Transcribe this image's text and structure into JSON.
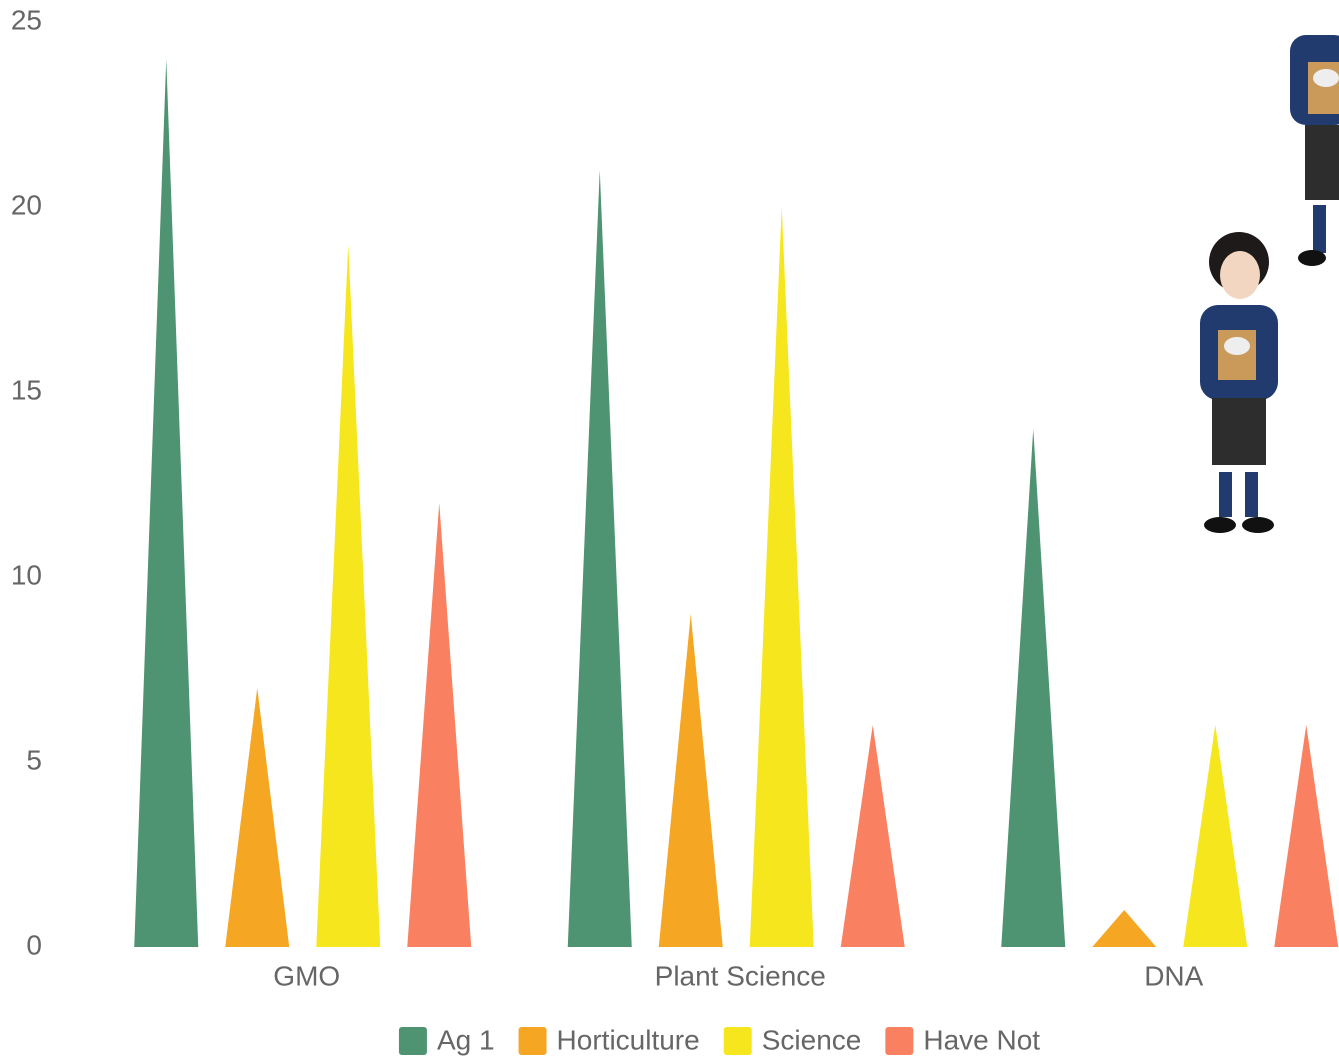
{
  "chart_data": {
    "type": "triangle-bar",
    "categories": [
      "GMO",
      "Plant Science",
      "DNA"
    ],
    "series": [
      {
        "name": "Ag 1",
        "color": "#4e9472",
        "values": [
          24,
          21,
          14
        ]
      },
      {
        "name": "Horticulture",
        "color": "#f5a623",
        "values": [
          7,
          9,
          1
        ]
      },
      {
        "name": "Science",
        "color": "#f5e61e",
        "values": [
          19,
          20,
          6
        ]
      },
      {
        "name": "Have Not",
        "color": "#f98060",
        "values": [
          12,
          6,
          6
        ]
      }
    ],
    "ylim": [
      0,
      25
    ],
    "yticks": [
      0,
      5,
      10,
      15,
      20,
      25
    ],
    "grid": false,
    "legend": "bottom"
  }
}
